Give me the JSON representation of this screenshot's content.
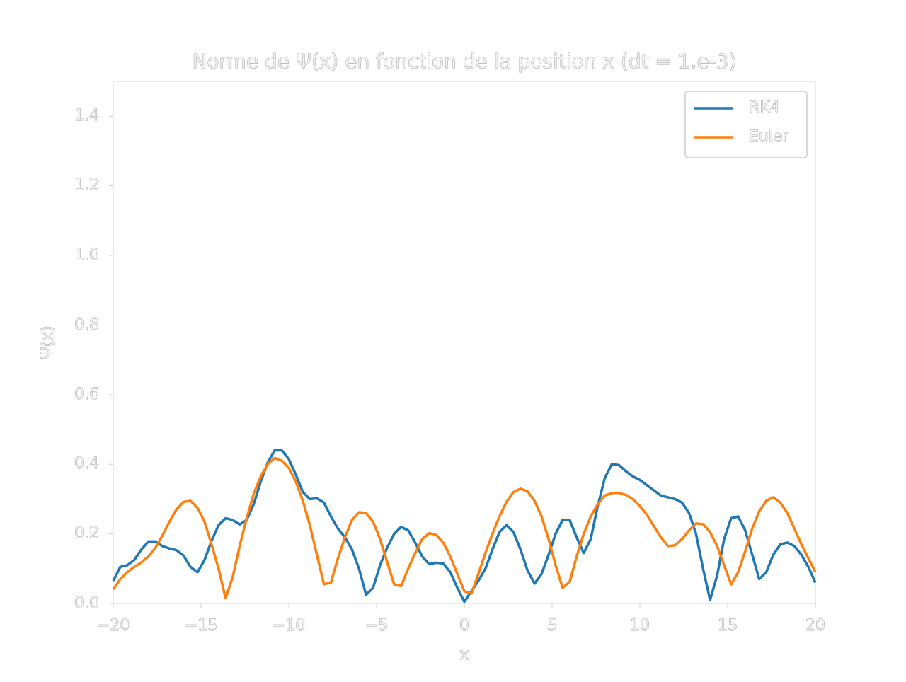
{
  "chart_data": {
    "type": "line",
    "title": "Norme de Ψ(x) en fonction de la position x (dt = 1.e-3)",
    "xlabel": "x",
    "ylabel": "Ψ(x)",
    "x": [
      -20,
      -19.6,
      -19.2,
      -18.8,
      -18.4,
      -18,
      -17.6,
      -17.2,
      -16.8,
      -16.4,
      -16,
      -15.6,
      -15.2,
      -14.8,
      -14.4,
      -14,
      -13.6,
      -13.2,
      -12.8,
      -12.4,
      -12,
      -11.6,
      -11.2,
      -10.8,
      -10.4,
      -10,
      -9.6,
      -9.2,
      -8.8,
      -8.4,
      -8,
      -7.6,
      -7.2,
      -6.8,
      -6.4,
      -6,
      -5.6,
      -5.2,
      -4.8,
      -4.4,
      -4,
      -3.6,
      -3.2,
      -2.8,
      -2.4,
      -2,
      -1.6,
      -1.2,
      -0.8,
      -0.4,
      0,
      0.4,
      0.8,
      1.2,
      1.6,
      2,
      2.4,
      2.8,
      3.2,
      3.6,
      4,
      4.4,
      4.8,
      5.2,
      5.6,
      6,
      6.4,
      6.8,
      7.2,
      7.6,
      8,
      8.4,
      8.8,
      9.2,
      9.6,
      10,
      10.4,
      10.8,
      11.2,
      11.6,
      12,
      12.4,
      12.8,
      13.2,
      13.6,
      14,
      14.4,
      14.8,
      15.2,
      15.6,
      16,
      16.4,
      16.8,
      17.2,
      17.6,
      18,
      18.4,
      18.8,
      19.2,
      19.6,
      20
    ],
    "series": [
      {
        "name": "RK4",
        "color": "#1f77b4",
        "values": [
          0.065,
          0.105,
          0.11,
          0.125,
          0.155,
          0.178,
          0.178,
          0.165,
          0.158,
          0.153,
          0.138,
          0.105,
          0.09,
          0.125,
          0.18,
          0.225,
          0.245,
          0.24,
          0.227,
          0.24,
          0.285,
          0.35,
          0.405,
          0.44,
          0.44,
          0.415,
          0.37,
          0.32,
          0.3,
          0.302,
          0.29,
          0.25,
          0.215,
          0.19,
          0.155,
          0.1,
          0.025,
          0.045,
          0.11,
          0.16,
          0.2,
          0.22,
          0.21,
          0.175,
          0.135,
          0.113,
          0.117,
          0.115,
          0.09,
          0.045,
          0.005,
          0.035,
          0.065,
          0.1,
          0.155,
          0.205,
          0.225,
          0.205,
          0.155,
          0.095,
          0.057,
          0.085,
          0.14,
          0.2,
          0.24,
          0.24,
          0.19,
          0.145,
          0.185,
          0.28,
          0.36,
          0.4,
          0.398,
          0.38,
          0.365,
          0.355,
          0.34,
          0.325,
          0.31,
          0.305,
          0.3,
          0.29,
          0.26,
          0.2,
          0.1,
          0.01,
          0.08,
          0.185,
          0.245,
          0.25,
          0.21,
          0.14,
          0.07,
          0.09,
          0.14,
          0.17,
          0.175,
          0.165,
          0.14,
          0.105,
          0.06
        ]
      },
      {
        "name": "Euler",
        "color": "#ff7f0e",
        "values": [
          0.04,
          0.07,
          0.09,
          0.105,
          0.118,
          0.135,
          0.16,
          0.195,
          0.235,
          0.27,
          0.292,
          0.295,
          0.275,
          0.235,
          0.17,
          0.1,
          0.015,
          0.075,
          0.165,
          0.245,
          0.315,
          0.365,
          0.4,
          0.418,
          0.41,
          0.39,
          0.35,
          0.295,
          0.225,
          0.14,
          0.055,
          0.06,
          0.13,
          0.19,
          0.24,
          0.262,
          0.26,
          0.235,
          0.185,
          0.12,
          0.055,
          0.05,
          0.1,
          0.145,
          0.185,
          0.202,
          0.197,
          0.175,
          0.135,
          0.085,
          0.035,
          0.028,
          0.085,
          0.145,
          0.2,
          0.25,
          0.292,
          0.32,
          0.33,
          0.322,
          0.295,
          0.25,
          0.185,
          0.11,
          0.045,
          0.062,
          0.135,
          0.2,
          0.25,
          0.285,
          0.31,
          0.317,
          0.318,
          0.312,
          0.3,
          0.28,
          0.255,
          0.222,
          0.19,
          0.165,
          0.167,
          0.185,
          0.21,
          0.23,
          0.228,
          0.205,
          0.165,
          0.11,
          0.055,
          0.09,
          0.15,
          0.215,
          0.265,
          0.295,
          0.305,
          0.29,
          0.26,
          0.215,
          0.17,
          0.13,
          0.09
        ]
      }
    ],
    "xlim": [
      -20,
      20
    ],
    "xticks": [
      {
        "value": -20,
        "label": "−20"
      },
      {
        "value": -15,
        "label": "−15"
      },
      {
        "value": -10,
        "label": "−10"
      },
      {
        "value": -5,
        "label": "−5"
      },
      0,
      5,
      10,
      15,
      20
    ],
    "ylim": [
      0,
      1.5
    ],
    "yticks": [
      {
        "value": 0,
        "label": "0.0"
      },
      0.2,
      0.4,
      0.6,
      0.8,
      {
        "value": 1,
        "label": "1.0"
      },
      1.2,
      1.4
    ],
    "legend": "upper right",
    "grid": false
  }
}
